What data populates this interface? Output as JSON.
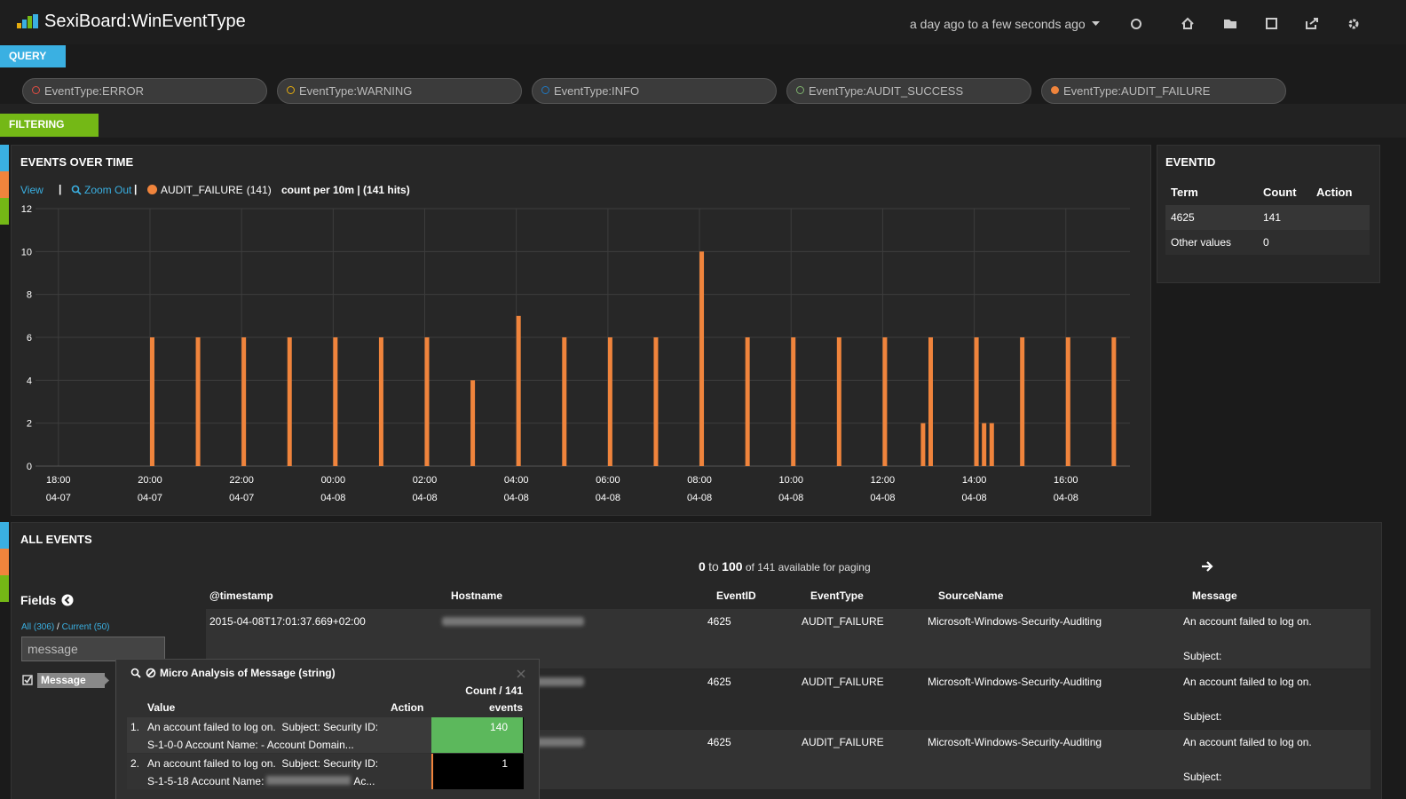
{
  "header": {
    "title": "SexiBoard:WinEventType",
    "time_range": "a day ago to a few seconds ago"
  },
  "query": {
    "button": "QUERY",
    "queries": [
      {
        "text": "EventType:ERROR",
        "color": "#e24d42",
        "filled": false
      },
      {
        "text": "EventType:WARNING",
        "color": "#e5ac0e",
        "filled": false
      },
      {
        "text": "EventType:INFO",
        "color": "#1f78c1",
        "filled": false
      },
      {
        "text": "EventType:AUDIT_SUCCESS",
        "color": "#7eb26d",
        "filled": false
      },
      {
        "text": "EventType:AUDIT_FAILURE",
        "color": "#f0843c",
        "filled": true
      }
    ]
  },
  "filtering": {
    "button": "FILTERING"
  },
  "events_over_time": {
    "title": "EVENTS OVER TIME",
    "view": "View",
    "zoom_out": "Zoom Out",
    "interval_text": "count per 10m | (141 hits)"
  },
  "chart_data": {
    "type": "bar",
    "x": [
      "04-07 20:00",
      "04-07 21:00",
      "04-07 22:00",
      "04-07 23:00",
      "04-08 00:00",
      "04-08 01:00",
      "04-08 02:00",
      "04-08 03:00",
      "04-08 04:00",
      "04-08 05:00",
      "04-08 06:00",
      "04-08 07:00",
      "04-08 08:00",
      "04-08 09:00",
      "04-08 10:00",
      "04-08 11:00",
      "04-08 12:00",
      "04-08 12:50",
      "04-08 13:00",
      "04-08 14:00",
      "04-08 14:10",
      "04-08 14:20",
      "04-08 15:00",
      "04-08 16:00",
      "04-08 17:00"
    ],
    "series": [
      {
        "name": "AUDIT_FAILURE",
        "legend_count": "(141)",
        "color": "#f0843c",
        "values": [
          6,
          6,
          6,
          6,
          6,
          6,
          6,
          4,
          7,
          6,
          6,
          6,
          10,
          6,
          6,
          6,
          6,
          2,
          6,
          6,
          2,
          2,
          6,
          6,
          6
        ]
      }
    ],
    "xlim": [
      "04-07 17:30",
      "04-08 17:24"
    ],
    "xticks": [
      {
        "value": "04-07 18:00",
        "label": [
          "18:00",
          "04-07"
        ]
      },
      {
        "value": "04-07 20:00",
        "label": [
          "20:00",
          "04-07"
        ]
      },
      {
        "value": "04-07 22:00",
        "label": [
          "22:00",
          "04-07"
        ]
      },
      {
        "value": "04-08 00:00",
        "label": [
          "00:00",
          "04-08"
        ]
      },
      {
        "value": "04-08 02:00",
        "label": [
          "02:00",
          "04-08"
        ]
      },
      {
        "value": "04-08 04:00",
        "label": [
          "04:00",
          "04-08"
        ]
      },
      {
        "value": "04-08 06:00",
        "label": [
          "06:00",
          "04-08"
        ]
      },
      {
        "value": "04-08 08:00",
        "label": [
          "08:00",
          "04-08"
        ]
      },
      {
        "value": "04-08 10:00",
        "label": [
          "10:00",
          "04-08"
        ]
      },
      {
        "value": "04-08 12:00",
        "label": [
          "12:00",
          "04-08"
        ]
      },
      {
        "value": "04-08 14:00",
        "label": [
          "14:00",
          "04-08"
        ]
      },
      {
        "value": "04-08 16:00",
        "label": [
          "16:00",
          "04-08"
        ]
      }
    ],
    "ylim": [
      0,
      12
    ],
    "yticks": [
      0,
      2,
      4,
      6,
      8,
      10,
      12
    ],
    "grid": true
  },
  "eventid": {
    "title": "EVENTID",
    "columns": [
      "Term",
      "Count",
      "Action"
    ],
    "rows": [
      [
        "4625",
        "141"
      ],
      [
        "Other values",
        "0"
      ]
    ]
  },
  "all_events": {
    "title": "ALL EVENTS",
    "paging": {
      "from": "0",
      "to_word": "to",
      "to": "100",
      "rest": "of 141 available for paging"
    },
    "fields": {
      "title": "Fields",
      "all": "All (306)",
      "sep": "/",
      "current": "Current (50)",
      "search": "message",
      "selected": "Message"
    },
    "columns": [
      "@timestamp",
      "Hostname",
      "EventID",
      "EventType",
      "SourceName",
      "Message"
    ],
    "rows": [
      {
        "timestamp": "2015-04-08T17:01:37.669+02:00",
        "event_id": "4625",
        "event_type": "AUDIT_FAILURE",
        "source": "Microsoft-Windows-Security-Auditing",
        "message": [
          "An account failed to log on.",
          "Subject:"
        ]
      },
      {
        "event_id": "4625",
        "event_type": "AUDIT_FAILURE",
        "source": "Microsoft-Windows-Security-Auditing",
        "message": [
          "An account failed to log on.",
          "Subject:"
        ]
      },
      {
        "event_id": "4625",
        "event_type": "AUDIT_FAILURE",
        "source": "Microsoft-Windows-Security-Auditing",
        "message": [
          "An account failed to log on.",
          "Subject:"
        ]
      }
    ]
  },
  "micro_analysis": {
    "title": "Micro Analysis of Message (string)",
    "count_header": "Count /",
    "total": 141,
    "events_header": "events",
    "value_header": "Value",
    "action_header": "Action",
    "rows": [
      {
        "rank": "1.",
        "lines": [
          "An account failed to log on.  Subject: Security ID:",
          "S-1-0-0 Account Name: - Account Domain..."
        ],
        "count": 140,
        "color": "#5cb85c"
      },
      {
        "rank": "2.",
        "lines": [
          "An account failed to log on.  Subject: Security ID:",
          "S-1-5-18 Account Name:",
          "Ac..."
        ],
        "count": 1,
        "color": "#f0843c"
      }
    ]
  }
}
